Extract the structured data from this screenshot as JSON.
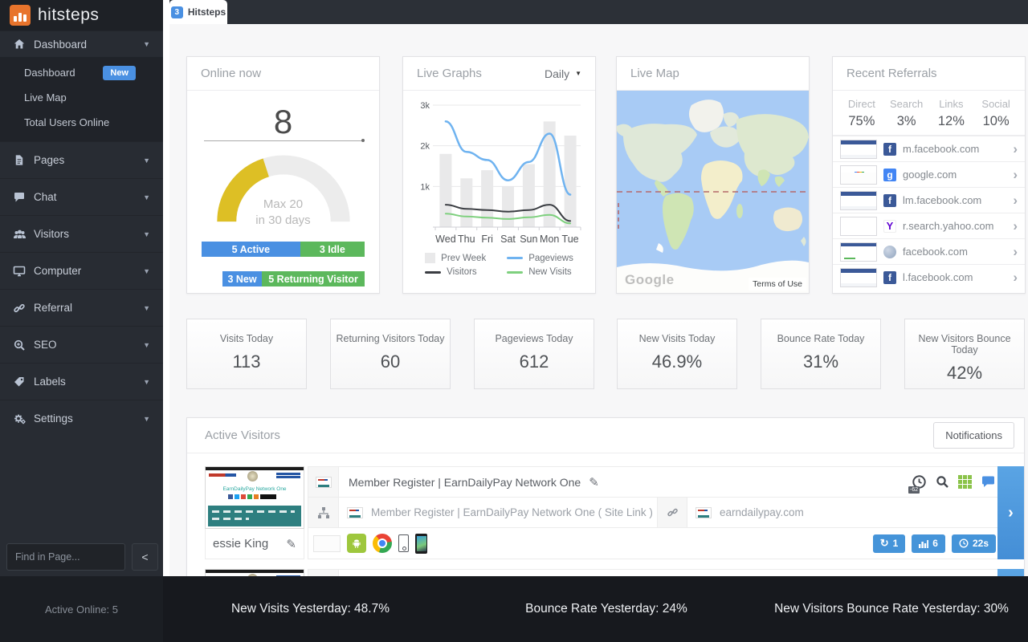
{
  "colors": {
    "accent_blue": "#4a90e2",
    "green": "#5cb85c",
    "gauge_yellow": "#ddbf25",
    "badge_blue": "#4594d9"
  },
  "brand": {
    "name": "hitsteps"
  },
  "tab": {
    "badge": "3",
    "title": "Hitsteps"
  },
  "sidebar": {
    "sections": [
      {
        "label": "Dashboard",
        "icon": "home-icon"
      },
      {
        "label": "Pages",
        "icon": "file-icon"
      },
      {
        "label": "Chat",
        "icon": "chat-icon"
      },
      {
        "label": "Visitors",
        "icon": "users-icon"
      },
      {
        "label": "Computer",
        "icon": "monitor-icon"
      },
      {
        "label": "Referral",
        "icon": "link-icon"
      },
      {
        "label": "SEO",
        "icon": "search-plus-icon"
      },
      {
        "label": "Labels",
        "icon": "tag-icon"
      },
      {
        "label": "Settings",
        "icon": "gears-icon"
      }
    ],
    "dashboard_submenu": [
      {
        "label": "Dashboard",
        "badge": "New",
        "active": true
      },
      {
        "label": "Live Map"
      },
      {
        "label": "Total Users Online"
      }
    ],
    "search_placeholder": "Find in Page...",
    "collapse_label": "<"
  },
  "cards": {
    "online_now": {
      "title": "Online now",
      "count": "8",
      "gauge_value": 8,
      "gauge_max": 20,
      "gauge_note_line1": "Max 20",
      "gauge_note_line2": "in 30 days",
      "bars": [
        [
          {
            "count": 5,
            "label": "5 Active",
            "color": "blue"
          },
          {
            "count": 3,
            "label": "3 Idle",
            "color": "green"
          }
        ],
        [
          {
            "count": 3,
            "label": "3 New",
            "color": "blue"
          },
          {
            "count": 5,
            "label": "5 Returning Visitor",
            "color": "green"
          }
        ]
      ]
    },
    "live_graphs": {
      "title": "Live Graphs",
      "range_selected": "Daily"
    },
    "live_map": {
      "title": "Live Map",
      "watermark": "Google",
      "terms_label": "Terms of Use"
    },
    "recent_referrals": {
      "title": "Recent Referrals",
      "summary": [
        {
          "label": "Direct",
          "value": "75%"
        },
        {
          "label": "Search",
          "value": "3%"
        },
        {
          "label": "Links",
          "value": "12%"
        },
        {
          "label": "Social",
          "value": "10%"
        }
      ],
      "items": [
        {
          "domain": "m.facebook.com",
          "icon": "facebook-icon",
          "icon_letter": "f"
        },
        {
          "domain": "google.com",
          "icon": "google-icon",
          "icon_letter": "g"
        },
        {
          "domain": "lm.facebook.com",
          "icon": "facebook-icon",
          "icon_letter": "f"
        },
        {
          "domain": "r.search.yahoo.com",
          "icon": "yahoo-icon",
          "icon_letter": "Y"
        },
        {
          "domain": "facebook.com",
          "icon": "globe-icon",
          "icon_letter": ""
        },
        {
          "domain": "l.facebook.com",
          "icon": "facebook-icon",
          "icon_letter": "f"
        }
      ]
    }
  },
  "stats": [
    {
      "label": "Visits Today",
      "value": "113"
    },
    {
      "label": "Returning Visitors Today",
      "value": "60"
    },
    {
      "label": "Pageviews Today",
      "value": "612"
    },
    {
      "label": "New Visits Today",
      "value": "46.9%"
    },
    {
      "label": "Bounce Rate Today",
      "value": "31%"
    },
    {
      "label": "New Visitors Bounce Today",
      "value": "42%"
    }
  ],
  "active_visitors": {
    "title": "Active Visitors",
    "notifications_label": "Notifications",
    "visitor": {
      "name": "essie King",
      "page_title": "Member Register | EarnDailyPay Network One",
      "site_link_title": "Member Register | EarnDailyPay Network One ( Site Link )",
      "referrer_domain": "earndailypay.com",
      "thumbnail_site_name": "EarnDailyPay Network One",
      "clock_badge": "-62",
      "badges": [
        {
          "icon": "refresh-icon",
          "value": "1"
        },
        {
          "icon": "bar-chart-icon",
          "value": "6"
        },
        {
          "icon": "clock-icon",
          "value": "22s"
        }
      ]
    }
  },
  "footer": {
    "items": [
      "Active Online: 5",
      "New Visits Yesterday: 48.7%",
      "Bounce Rate Yesterday: 24%",
      "New Visitors Bounce Rate Yesterday: 30%"
    ]
  },
  "chart_data": {
    "type": "bar+line",
    "categories": [
      "Wed",
      "Thu",
      "Fri",
      "Sat",
      "Sun",
      "Mon",
      "Tue"
    ],
    "series": [
      {
        "name": "Prev Week",
        "type": "bar",
        "color": "#e9e9ea",
        "values": [
          1800,
          1200,
          1400,
          1000,
          1550,
          2600,
          2250
        ]
      },
      {
        "name": "Pageviews",
        "type": "line",
        "color": "#6fb3f0",
        "width": 2.5,
        "values": [
          2600,
          1850,
          1650,
          1150,
          1600,
          2300,
          800
        ]
      },
      {
        "name": "Visitors",
        "type": "line",
        "color": "#3a3d42",
        "width": 2,
        "values": [
          550,
          450,
          420,
          380,
          420,
          550,
          150
        ]
      },
      {
        "name": "New Visits",
        "type": "line",
        "color": "#7ed07e",
        "width": 2,
        "values": [
          330,
          260,
          230,
          200,
          240,
          300,
          90
        ]
      }
    ],
    "title": "Live Graphs",
    "xlabel": "",
    "ylabel": "",
    "ylim": [
      0,
      3000
    ],
    "yticks": [
      {
        "label": "1k",
        "value": 1000
      },
      {
        "label": "2k",
        "value": 2000
      },
      {
        "label": "3k",
        "value": 3000
      }
    ],
    "grid": true,
    "legend_position": "bottom"
  }
}
